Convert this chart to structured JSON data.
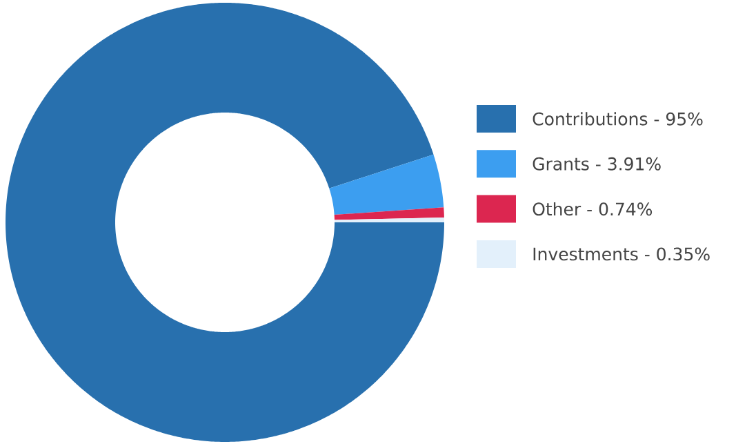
{
  "chart_data": {
    "type": "donut",
    "categories": [
      "Contributions - 95%",
      "Grants - 3.91%",
      "Other - 0.74%",
      "Investments - 0.35%"
    ],
    "values": [
      95,
      3.91,
      0.74,
      0.35
    ],
    "colors": [
      "#2870ae",
      "#3c9ef0",
      "#dc2650",
      "#e3f0fb"
    ],
    "legend": "right"
  }
}
